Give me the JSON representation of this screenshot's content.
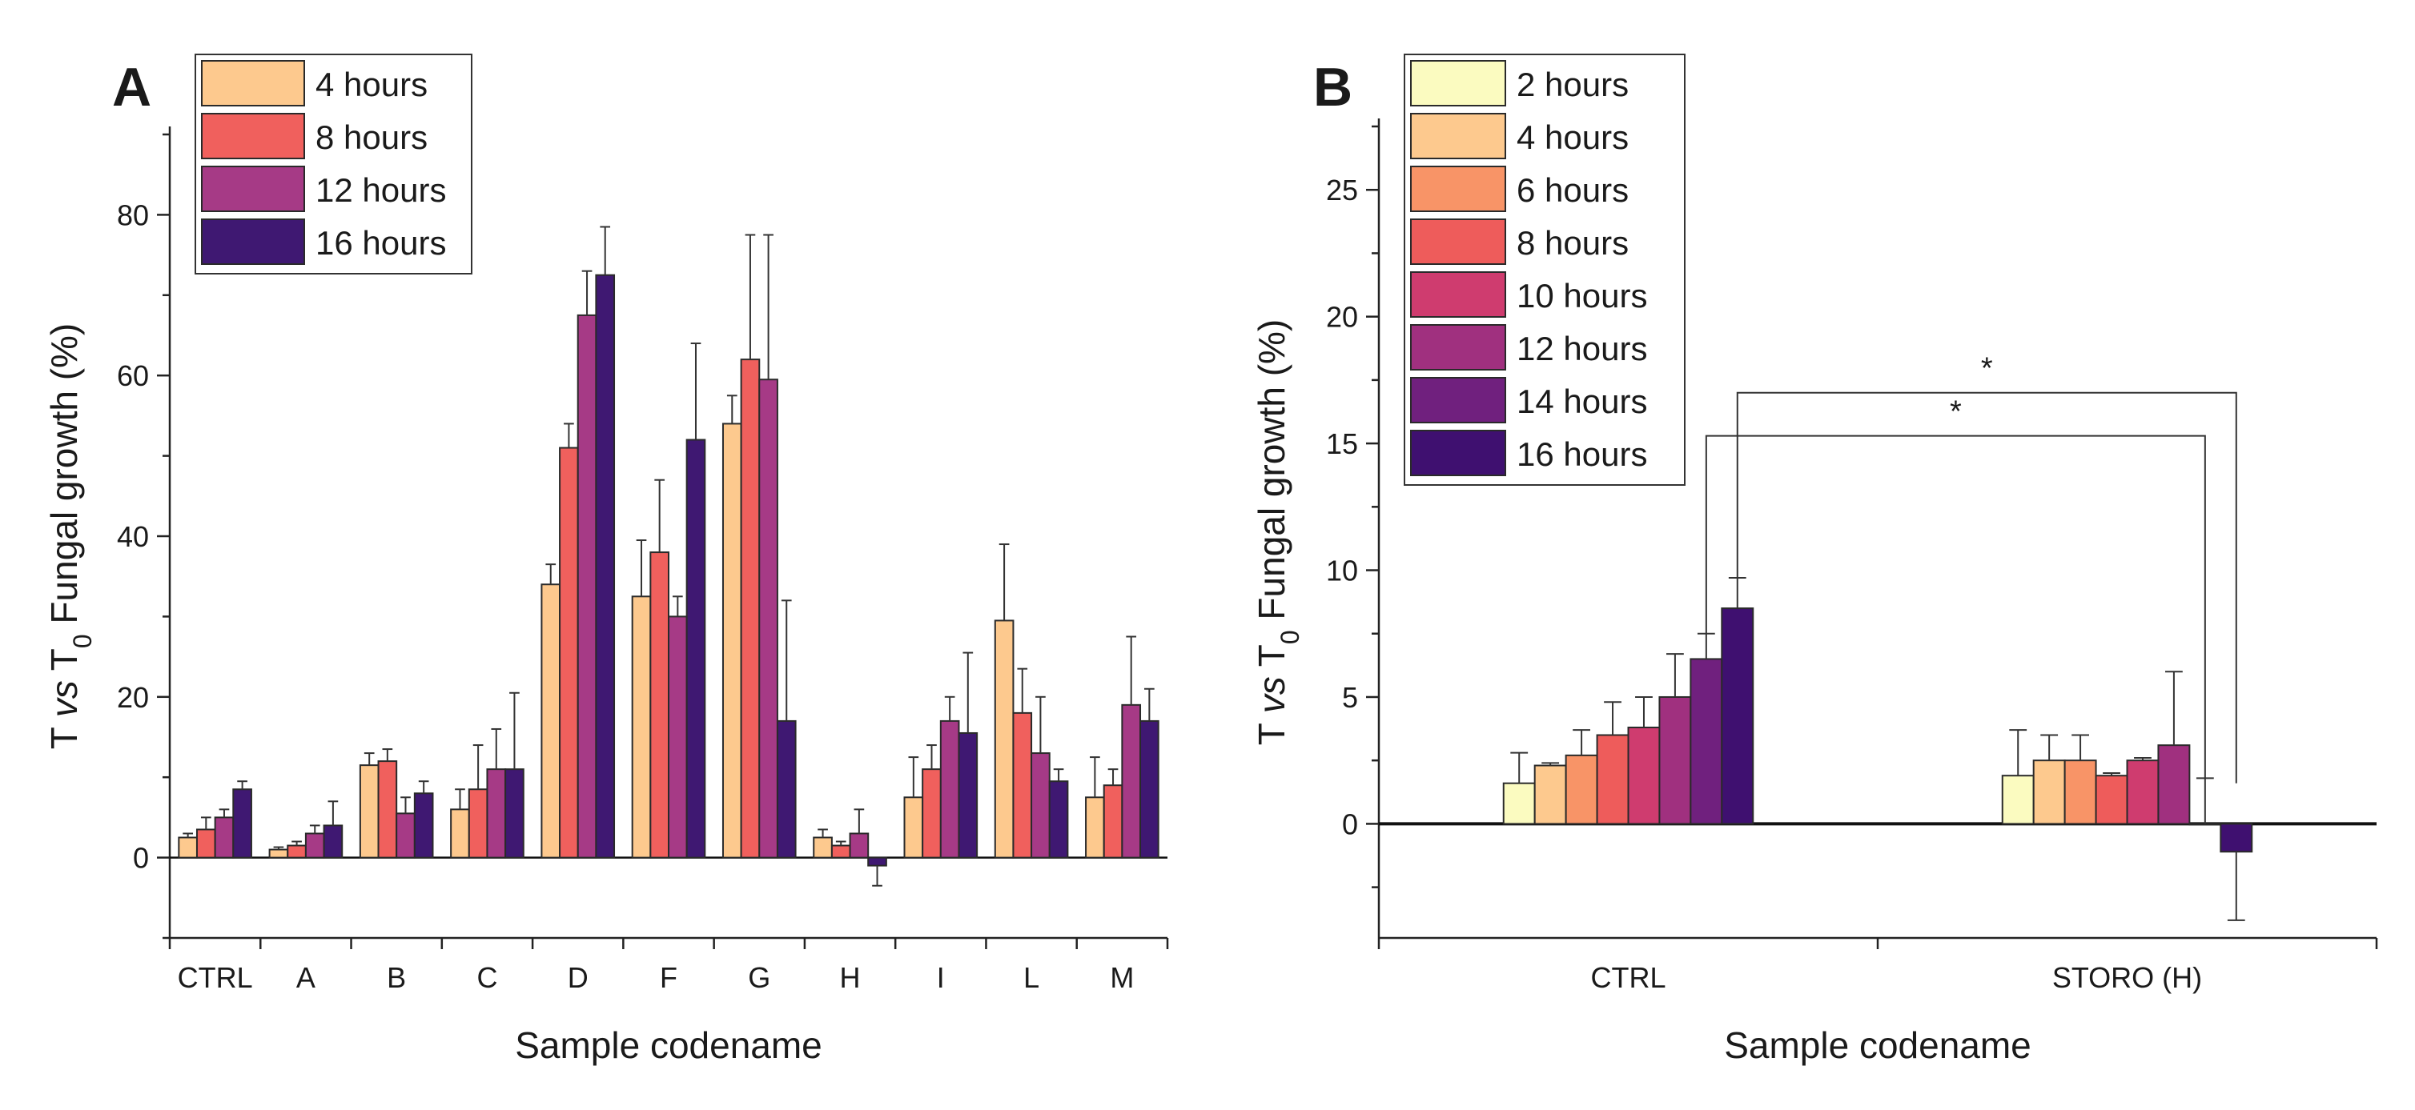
{
  "chart_data": [
    {
      "panel": "A",
      "type": "bar",
      "xlabel": "Sample codename",
      "ylabel_main": "T ",
      "ylabel_vs": "vs",
      "ylabel_t": " T",
      "ylabel_sub": "0",
      "ylabel_rest": " Fungal growth (%)",
      "ylim": [
        -10,
        90
      ],
      "yticks": [
        0,
        20,
        40,
        60,
        80
      ],
      "categories": [
        "CTRL",
        "A",
        "B",
        "C",
        "D",
        "F",
        "G",
        "H",
        "I",
        "L",
        "M"
      ],
      "series": [
        {
          "name": "4 hours",
          "color": "#FDC98E",
          "values": [
            2.5,
            1.0,
            11.5,
            6.0,
            34.0,
            32.5,
            54.0,
            2.5,
            7.5,
            29.5,
            7.5
          ],
          "errors": [
            0.5,
            0.3,
            1.5,
            2.5,
            2.5,
            7.0,
            3.5,
            1.0,
            5.0,
            9.5,
            5.0
          ]
        },
        {
          "name": "8 hours",
          "color": "#F0605D",
          "values": [
            3.5,
            1.5,
            12.0,
            8.5,
            51.0,
            38.0,
            62.0,
            1.5,
            11.0,
            18.0,
            9.0
          ],
          "errors": [
            1.5,
            0.5,
            1.5,
            5.5,
            3.0,
            9.0,
            15.5,
            0.5,
            3.0,
            5.5,
            2.0
          ]
        },
        {
          "name": "12 hours",
          "color": "#A63A86",
          "values": [
            5.0,
            3.0,
            5.5,
            11.0,
            67.5,
            30.0,
            59.5,
            3.0,
            17.0,
            13.0,
            19.0
          ],
          "errors": [
            1.0,
            1.0,
            2.0,
            5.0,
            5.5,
            2.5,
            18.0,
            3.0,
            3.0,
            7.0,
            8.5
          ]
        },
        {
          "name": "16 hours",
          "color": "#3F1872",
          "values": [
            8.5,
            4.0,
            8.0,
            11.0,
            72.5,
            52.0,
            17.0,
            -1.0,
            15.5,
            9.5,
            17.0
          ],
          "errors": [
            1.0,
            3.0,
            1.5,
            9.5,
            6.0,
            12.0,
            15.0,
            2.5,
            10.0,
            1.5,
            4.0
          ]
        }
      ]
    },
    {
      "panel": "B",
      "type": "bar",
      "xlabel": "Sample codename",
      "ylabel_main": "T ",
      "ylabel_vs": "vs",
      "ylabel_t": " T",
      "ylabel_sub": "0",
      "ylabel_rest": " Fungal growth (%)",
      "ylim": [
        -4.5,
        27.5
      ],
      "yticks": [
        0,
        5,
        10,
        15,
        20,
        25
      ],
      "categories": [
        "CTRL",
        "STORO (H)"
      ],
      "series": [
        {
          "name": "2 hours",
          "color": "#FBFBC0",
          "values": [
            1.6,
            1.9
          ],
          "errors": [
            1.2,
            1.8
          ]
        },
        {
          "name": "4 hours",
          "color": "#FDC98E",
          "values": [
            2.3,
            2.5
          ],
          "errors": [
            0.1,
            1.0
          ]
        },
        {
          "name": "6 hours",
          "color": "#F89467",
          "values": [
            2.7,
            2.5
          ],
          "errors": [
            1.0,
            1.0
          ]
        },
        {
          "name": "8 hours",
          "color": "#EE5C5B",
          "values": [
            3.5,
            1.9
          ],
          "errors": [
            1.3,
            0.1
          ]
        },
        {
          "name": "10 hours",
          "color": "#CF3C6F",
          "values": [
            3.8,
            2.5
          ],
          "errors": [
            1.2,
            0.1
          ]
        },
        {
          "name": "12 hours",
          "color": "#A0307F",
          "values": [
            5.0,
            3.1
          ],
          "errors": [
            1.7,
            2.9
          ]
        },
        {
          "name": "14 hours",
          "color": "#70207E",
          "values": [
            6.5,
            0.0
          ],
          "errors": [
            1.0,
            1.8
          ]
        },
        {
          "name": "16 hours",
          "color": "#3F1070",
          "values": [
            8.5,
            -1.1
          ],
          "errors": [
            1.2,
            2.7
          ]
        }
      ],
      "significance": [
        "*",
        "*"
      ]
    }
  ],
  "panels": {
    "a": {
      "label": "A"
    },
    "b": {
      "label": "B"
    }
  }
}
